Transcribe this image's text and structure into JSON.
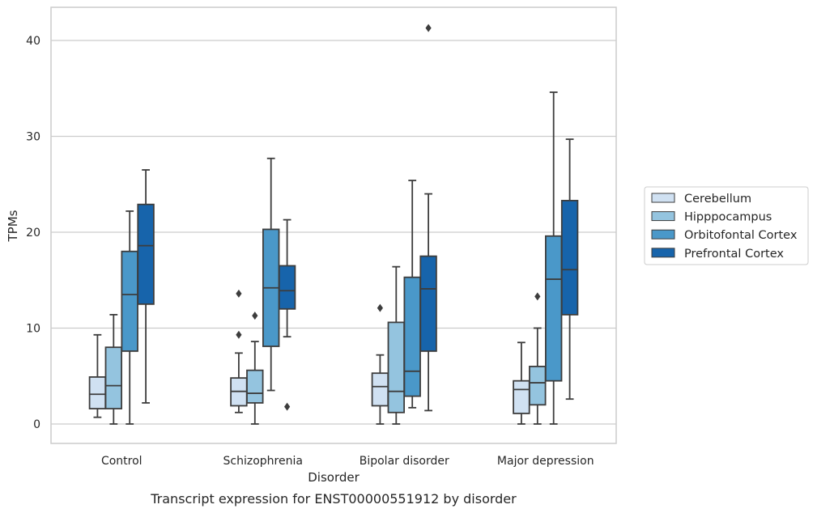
{
  "chart_data": {
    "type": "box",
    "title": "",
    "caption": "Transcript expression for ENST00000551912 by disorder",
    "xlabel": "Disorder",
    "ylabel": "TPMs",
    "ylim": [
      -2,
      43.5
    ],
    "yticks": [
      0,
      10,
      20,
      30,
      40
    ],
    "grid": "horizontal",
    "legend_position": "right",
    "categories": [
      "Control",
      "Schizophrenia",
      "Bipolar disorder",
      "Major depression"
    ],
    "series": [
      {
        "name": "Cerebellum",
        "color": "#d0e1f2",
        "boxes": [
          {
            "min": 0.7,
            "q1": 1.6,
            "median": 3.1,
            "q3": 4.9,
            "max": 9.3,
            "outliers": []
          },
          {
            "min": 1.2,
            "q1": 1.9,
            "median": 3.4,
            "q3": 4.8,
            "max": 7.4,
            "outliers": [
              9.3,
              13.6
            ]
          },
          {
            "min": 0.0,
            "q1": 1.9,
            "median": 3.9,
            "q3": 5.3,
            "max": 7.2,
            "outliers": [
              12.1
            ]
          },
          {
            "min": 0.0,
            "q1": 1.1,
            "median": 3.6,
            "q3": 4.5,
            "max": 8.5,
            "outliers": []
          }
        ]
      },
      {
        "name": "Hipppocampus",
        "color": "#94c4df",
        "boxes": [
          {
            "min": 0.0,
            "q1": 1.6,
            "median": 4.0,
            "q3": 8.0,
            "max": 11.4,
            "outliers": []
          },
          {
            "min": 0.0,
            "q1": 2.2,
            "median": 3.2,
            "q3": 5.6,
            "max": 8.6,
            "outliers": [
              11.3
            ]
          },
          {
            "min": 0.0,
            "q1": 1.2,
            "median": 3.4,
            "q3": 10.6,
            "max": 16.4,
            "outliers": []
          },
          {
            "min": 0.0,
            "q1": 2.0,
            "median": 4.3,
            "q3": 6.0,
            "max": 10.0,
            "outliers": [
              13.3
            ]
          }
        ]
      },
      {
        "name": "Orbitofontal Cortex",
        "color": "#4a98c9",
        "boxes": [
          {
            "min": 0.0,
            "q1": 7.6,
            "median": 13.5,
            "q3": 18.0,
            "max": 22.2,
            "outliers": []
          },
          {
            "min": 3.5,
            "q1": 8.1,
            "median": 14.2,
            "q3": 20.3,
            "max": 27.7,
            "outliers": []
          },
          {
            "min": 1.7,
            "q1": 2.9,
            "median": 5.5,
            "q3": 15.3,
            "max": 25.4,
            "outliers": []
          },
          {
            "min": 0.0,
            "q1": 4.5,
            "median": 15.1,
            "q3": 19.6,
            "max": 34.6,
            "outliers": []
          }
        ]
      },
      {
        "name": "Prefrontal Cortex",
        "color": "#1764ab",
        "boxes": [
          {
            "min": 2.2,
            "q1": 12.5,
            "median": 18.6,
            "q3": 22.9,
            "max": 26.5,
            "outliers": []
          },
          {
            "min": 9.1,
            "q1": 12.0,
            "median": 13.9,
            "q3": 16.5,
            "max": 21.3,
            "outliers": [
              1.8
            ]
          },
          {
            "min": 1.4,
            "q1": 7.6,
            "median": 14.1,
            "q3": 17.5,
            "max": 24.0,
            "outliers": [
              41.3
            ]
          },
          {
            "min": 2.6,
            "q1": 11.4,
            "median": 16.1,
            "q3": 23.3,
            "max": 29.7,
            "outliers": []
          }
        ]
      }
    ]
  }
}
